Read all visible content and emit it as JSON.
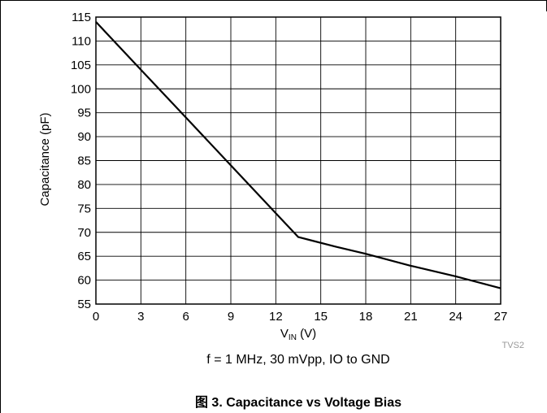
{
  "chart_data": {
    "type": "line",
    "xlabel_main": "V",
    "xlabel_sub": "IN",
    "xlabel_unit": " (V)",
    "ylabel": "Capacitance (pF)",
    "xlim": [
      0,
      27
    ],
    "ylim": [
      55,
      115
    ],
    "xticks": [
      0,
      3,
      6,
      9,
      12,
      15,
      18,
      21,
      24,
      27
    ],
    "yticks": [
      55,
      60,
      65,
      70,
      75,
      80,
      85,
      90,
      95,
      100,
      105,
      110,
      115
    ],
    "grid": true,
    "watermark": "TVS2",
    "series": [
      {
        "x": [
          0,
          3,
          6,
          9,
          12,
          13.5,
          16,
          18,
          21,
          24,
          27
        ],
        "values": [
          114,
          104,
          94,
          84,
          74,
          69,
          67,
          65.5,
          63,
          60.8,
          58.3
        ]
      }
    ]
  },
  "condition": "f = 1 MHz, 30 mVpp, IO to GND",
  "caption": "图 3. Capacitance vs Voltage Bias",
  "colors": {
    "line": "#000000",
    "grid": "#000000",
    "watermark": "#9a9a9a"
  }
}
